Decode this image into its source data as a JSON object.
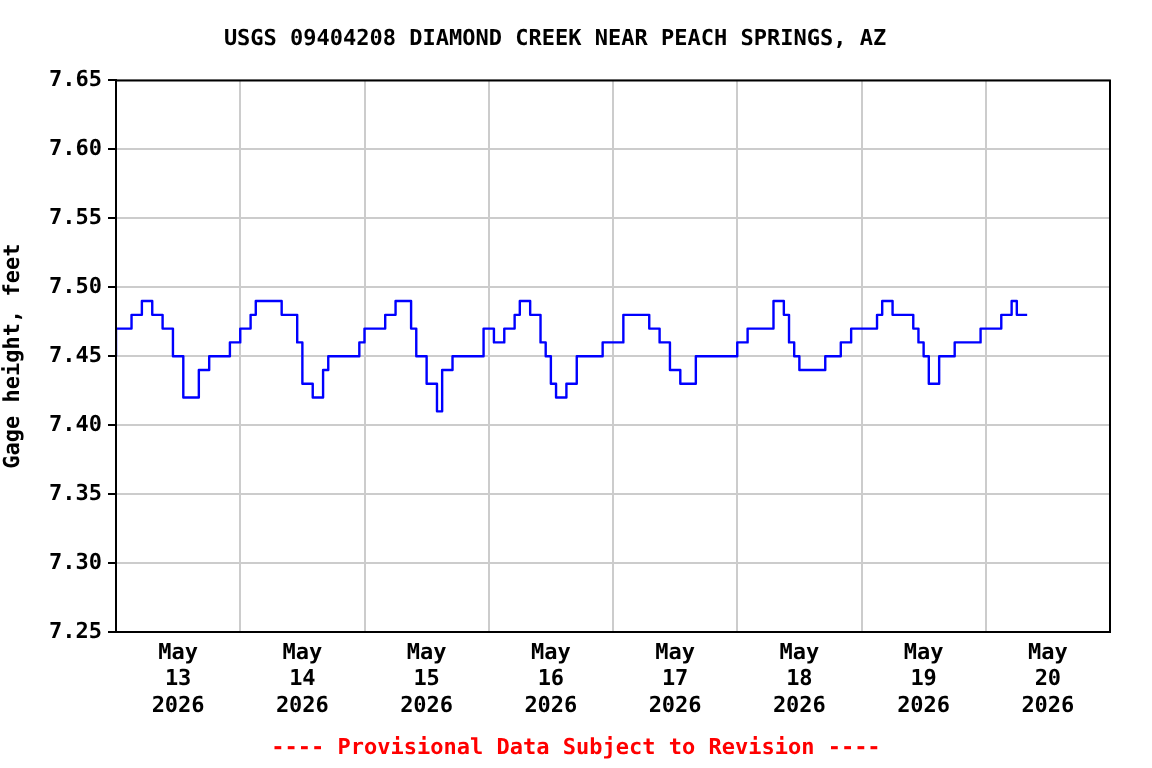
{
  "chart_data": {
    "type": "step",
    "title": "USGS 09404208 DIAMOND CREEK NEAR PEACH SPRINGS, AZ",
    "ylabel": "Gage height, feet",
    "annotations": [
      "---- Provisional Data Subject to Revision ----"
    ],
    "x": [
      "2026-05-13T00:00",
      "2026-05-13T03:00",
      "2026-05-13T05:00",
      "2026-05-13T07:00",
      "2026-05-13T09:00",
      "2026-05-13T11:00",
      "2026-05-13T13:00",
      "2026-05-13T14:00",
      "2026-05-13T16:00",
      "2026-05-13T18:00",
      "2026-05-13T20:00",
      "2026-05-13T22:00",
      "2026-05-14T00:00",
      "2026-05-14T02:00",
      "2026-05-14T03:00",
      "2026-05-14T08:00",
      "2026-05-14T11:00",
      "2026-05-14T12:00",
      "2026-05-14T14:00",
      "2026-05-14T15:00",
      "2026-05-14T16:00",
      "2026-05-14T17:00",
      "2026-05-14T19:00",
      "2026-05-14T23:00",
      "2026-05-15T00:00",
      "2026-05-15T02:00",
      "2026-05-15T04:00",
      "2026-05-15T06:00",
      "2026-05-15T09:00",
      "2026-05-15T10:00",
      "2026-05-15T12:00",
      "2026-05-15T14:00",
      "2026-05-15T15:00",
      "2026-05-15T17:00",
      "2026-05-15T19:00",
      "2026-05-15T23:00",
      "2026-05-16T01:00",
      "2026-05-16T03:00",
      "2026-05-16T05:00",
      "2026-05-16T06:00",
      "2026-05-16T08:00",
      "2026-05-16T10:00",
      "2026-05-16T11:00",
      "2026-05-16T12:00",
      "2026-05-16T13:00",
      "2026-05-16T15:00",
      "2026-05-16T17:00",
      "2026-05-16T19:00",
      "2026-05-16T22:00",
      "2026-05-17T00:00",
      "2026-05-17T02:00",
      "2026-05-17T04:00",
      "2026-05-17T07:00",
      "2026-05-17T09:00",
      "2026-05-17T11:00",
      "2026-05-17T13:00",
      "2026-05-17T14:00",
      "2026-05-17T16:00",
      "2026-05-17T18:00",
      "2026-05-17T22:00",
      "2026-05-18T00:00",
      "2026-05-18T02:00",
      "2026-05-18T04:00",
      "2026-05-18T07:00",
      "2026-05-18T09:00",
      "2026-05-18T10:00",
      "2026-05-18T11:00",
      "2026-05-18T12:00",
      "2026-05-18T14:00",
      "2026-05-18T17:00",
      "2026-05-18T18:00",
      "2026-05-18T20:00",
      "2026-05-18T22:00",
      "2026-05-19T01:00",
      "2026-05-19T03:00",
      "2026-05-19T04:00",
      "2026-05-19T06:00",
      "2026-05-19T07:00",
      "2026-05-19T10:00",
      "2026-05-19T11:00",
      "2026-05-19T12:00",
      "2026-05-19T13:00",
      "2026-05-19T14:00",
      "2026-05-19T15:00",
      "2026-05-19T16:00",
      "2026-05-19T18:00",
      "2026-05-19T20:00",
      "2026-05-19T23:00",
      "2026-05-20T00:00",
      "2026-05-20T03:00",
      "2026-05-20T05:00",
      "2026-05-20T06:00",
      "2026-05-20T08:00"
    ],
    "series": [
      {
        "color": "#0000ff",
        "values": [
          7.45,
          7.47,
          7.48,
          7.49,
          7.48,
          7.47,
          7.45,
          7.42,
          7.42,
          7.44,
          7.45,
          7.45,
          7.46,
          7.47,
          7.48,
          7.49,
          7.48,
          7.46,
          7.43,
          7.42,
          7.42,
          7.44,
          7.45,
          7.45,
          7.46,
          7.47,
          7.47,
          7.48,
          7.49,
          7.47,
          7.45,
          7.43,
          7.41,
          7.44,
          7.45,
          7.45,
          7.47,
          7.46,
          7.47,
          7.48,
          7.49,
          7.48,
          7.46,
          7.45,
          7.43,
          7.42,
          7.43,
          7.45,
          7.45,
          7.46,
          7.46,
          7.48,
          7.48,
          7.47,
          7.46,
          7.44,
          7.43,
          7.43,
          7.45,
          7.45,
          7.45,
          7.46,
          7.47,
          7.47,
          7.49,
          7.48,
          7.46,
          7.45,
          7.44,
          7.44,
          7.45,
          7.45,
          7.46,
          7.47,
          7.47,
          7.48,
          7.49,
          7.48,
          7.48,
          7.47,
          7.46,
          7.45,
          7.43,
          7.43,
          7.45,
          7.45,
          7.46,
          7.46,
          7.47,
          7.47,
          7.48,
          7.49,
          7.48
        ]
      }
    ],
    "xlim": [
      "2026-05-13T00:00",
      "2026-05-21T00:00"
    ],
    "xticks": [
      {
        "value": "2026-05-13T00:00",
        "label": null
      },
      {
        "value": "2026-05-13T12:00",
        "label": "May\n13\n2026"
      },
      {
        "value": "2026-05-14T00:00",
        "label": null
      },
      {
        "value": "2026-05-14T12:00",
        "label": "May\n14\n2026"
      },
      {
        "value": "2026-05-15T00:00",
        "label": null
      },
      {
        "value": "2026-05-15T12:00",
        "label": "May\n15\n2026"
      },
      {
        "value": "2026-05-16T00:00",
        "label": null
      },
      {
        "value": "2026-05-16T12:00",
        "label": "May\n16\n2026"
      },
      {
        "value": "2026-05-17T00:00",
        "label": null
      },
      {
        "value": "2026-05-17T12:00",
        "label": "May\n17\n2026"
      },
      {
        "value": "2026-05-18T00:00",
        "label": null
      },
      {
        "value": "2026-05-18T12:00",
        "label": "May\n18\n2026"
      },
      {
        "value": "2026-05-19T00:00",
        "label": null
      },
      {
        "value": "2026-05-19T12:00",
        "label": "May\n19\n2026"
      },
      {
        "value": "2026-05-20T00:00",
        "label": null
      },
      {
        "value": "2026-05-20T12:00",
        "label": "May\n20\n2026"
      },
      {
        "value": "2026-05-21T00:00",
        "label": null
      }
    ],
    "ylim": [
      7.25,
      7.65
    ],
    "yticks": [
      {
        "value": 7.25,
        "label": "7.25"
      },
      {
        "value": 7.3,
        "label": "7.30"
      },
      {
        "value": 7.35,
        "label": "7.35"
      },
      {
        "value": 7.4,
        "label": "7.40"
      },
      {
        "value": 7.45,
        "label": "7.45"
      },
      {
        "value": 7.5,
        "label": "7.50"
      },
      {
        "value": 7.55,
        "label": "7.55"
      },
      {
        "value": 7.6,
        "label": "7.60"
      },
      {
        "value": 7.65,
        "label": "7.65"
      }
    ],
    "grid": true,
    "legend": false,
    "marker": "none",
    "line_style": "solid"
  }
}
